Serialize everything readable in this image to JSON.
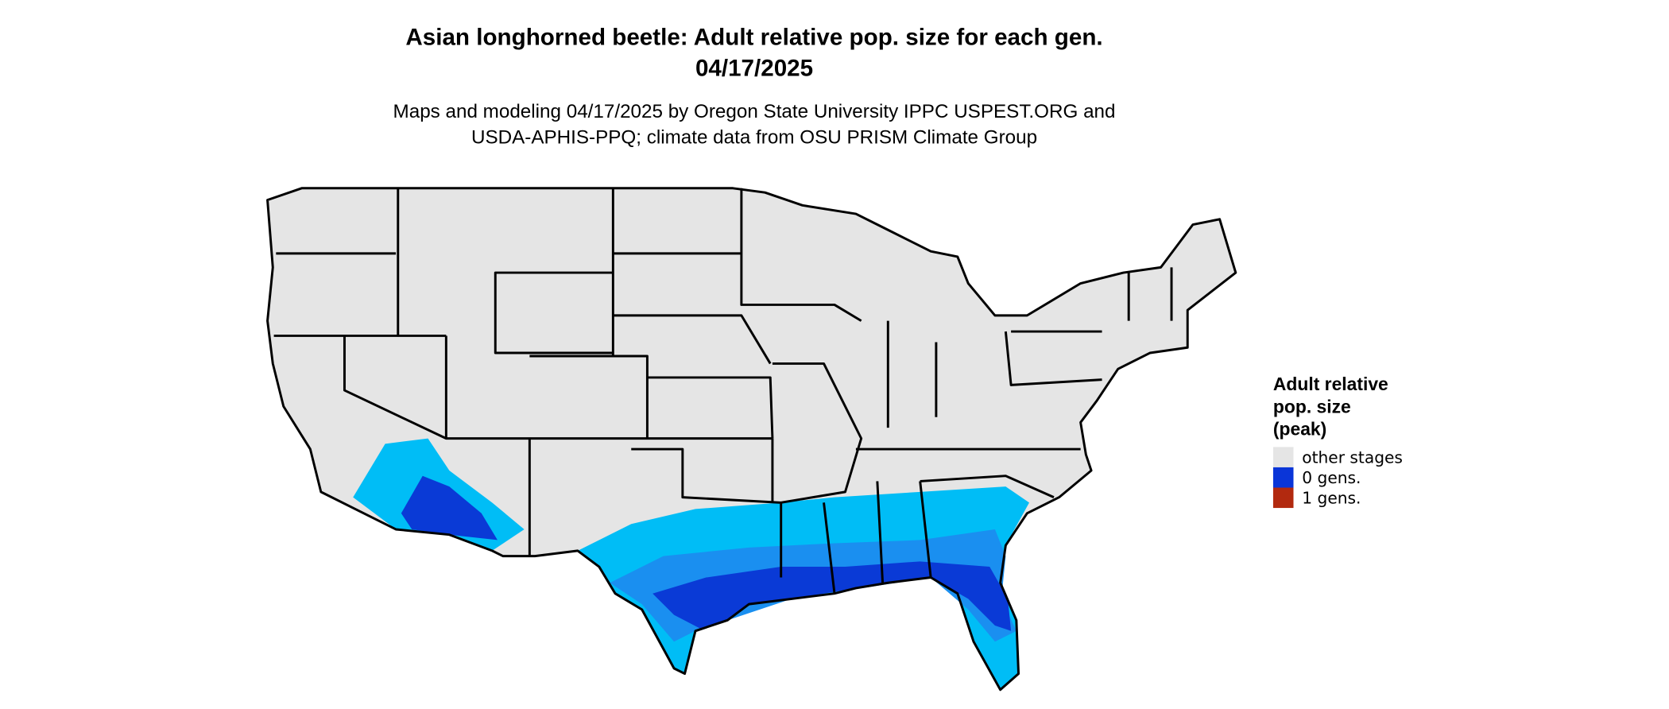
{
  "header": {
    "title_lines": [
      "Asian longhorned beetle: Adult relative pop. size for each gen.",
      "04/17/2025"
    ],
    "subtitle_lines": [
      "Maps and modeling 04/17/2025 by Oregon State University IPPC USPEST.ORG and",
      "USDA-APHIS-PPQ; climate data from OSU PRISM Climate Group"
    ]
  },
  "legend": {
    "title_lines": [
      "Adult relative",
      "pop. size",
      "(peak)"
    ],
    "items": [
      {
        "label": "other stages",
        "color": "#e5e5e5"
      },
      {
        "label": "0 gens.",
        "color": "#0a35d8"
      },
      {
        "label": "1 gens.",
        "color": "#b2290f"
      }
    ]
  }
}
